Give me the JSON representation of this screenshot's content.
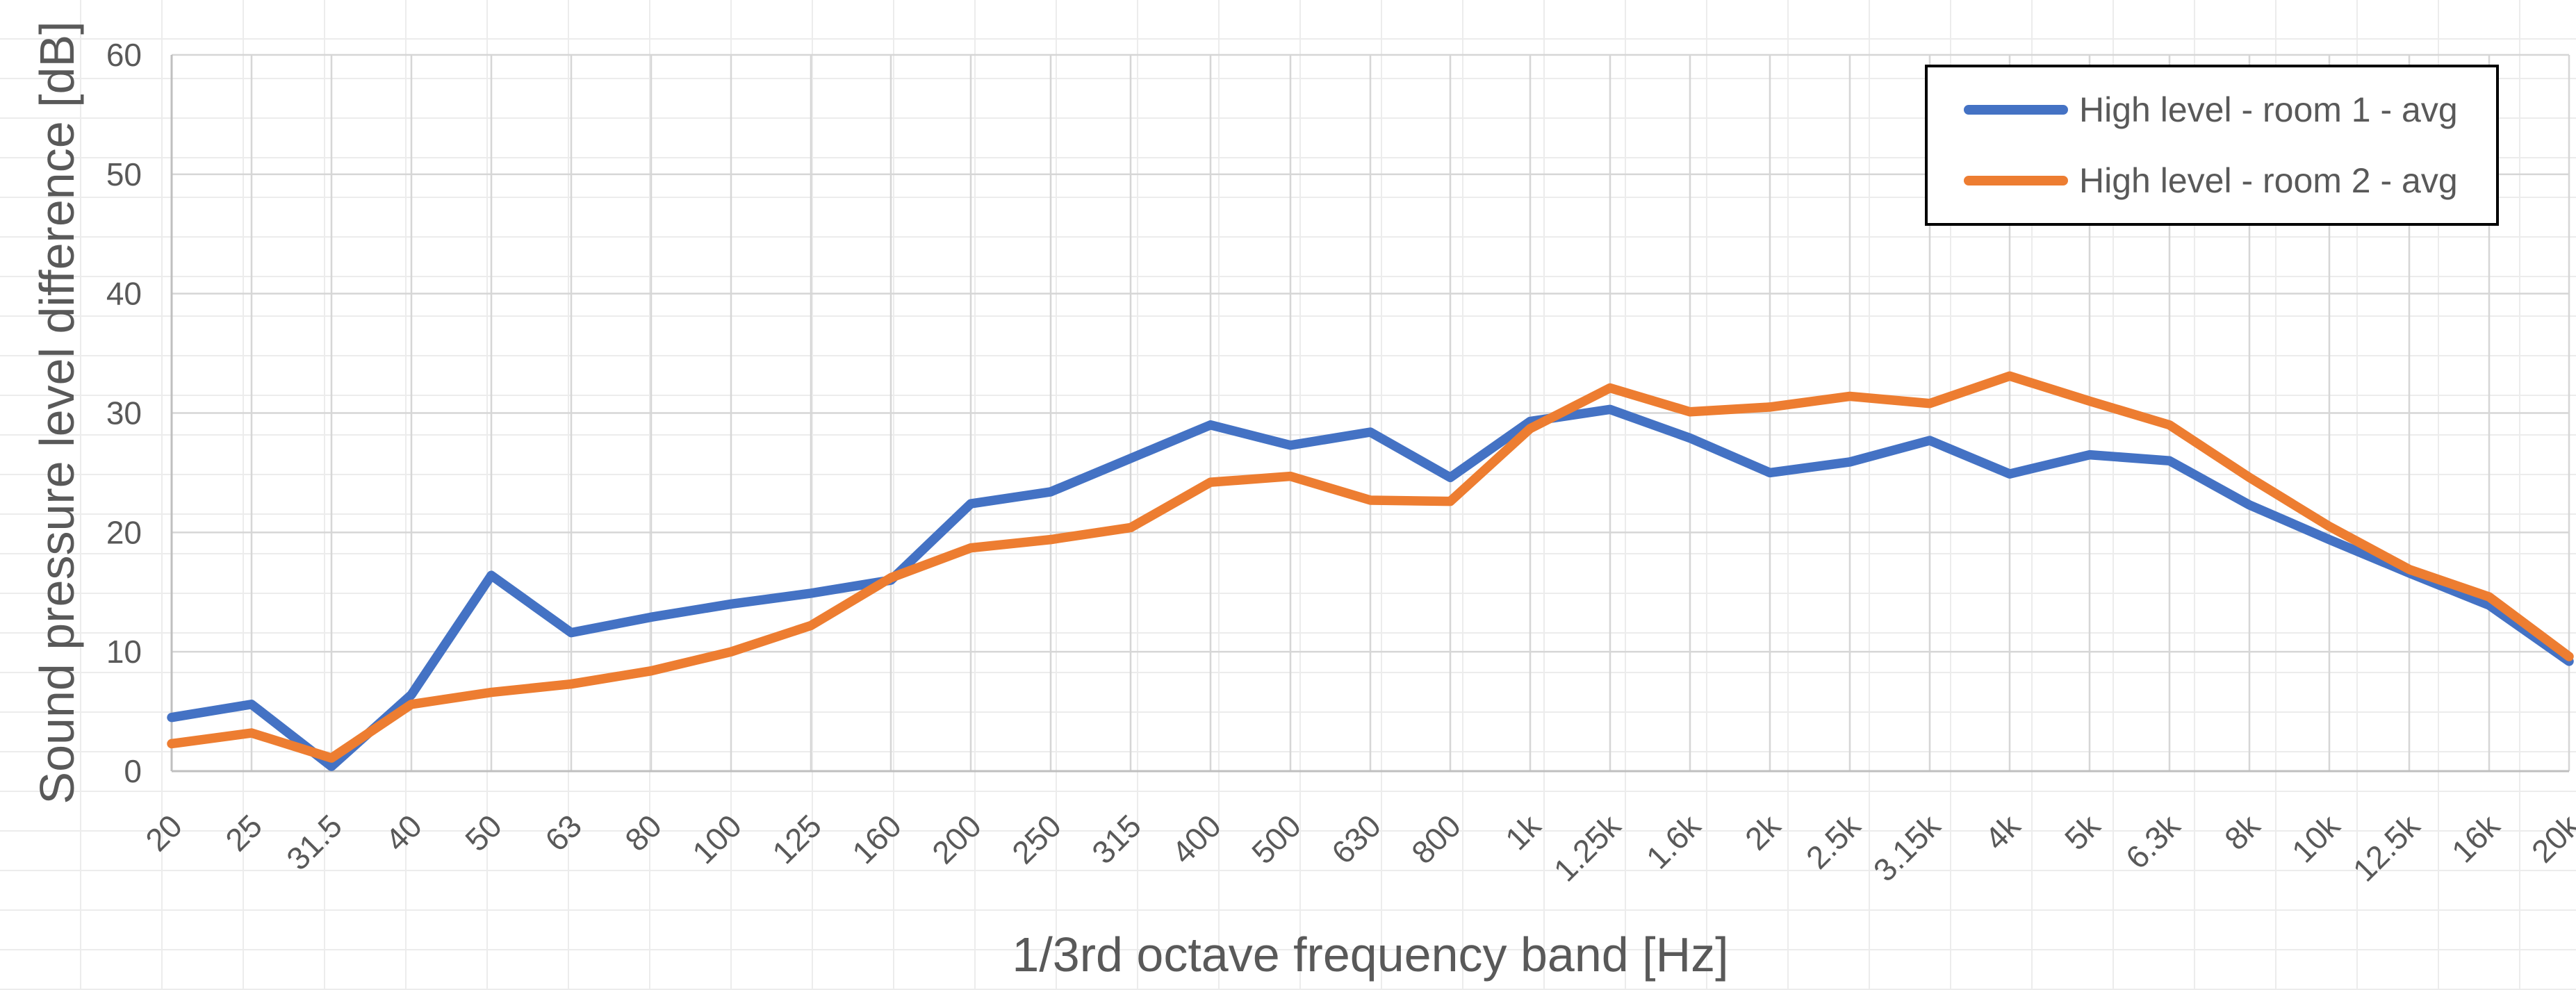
{
  "chart_data": {
    "type": "line",
    "title": "",
    "xlabel": "1/3rd octave frequency band [Hz]",
    "ylabel": "Sound pressure level difference [dB]",
    "ylim": [
      0,
      60
    ],
    "ytick_step": 10,
    "ytick_labels": [
      "0",
      "10",
      "20",
      "30",
      "40",
      "50",
      "60"
    ],
    "grid": true,
    "legend_position": "top-right",
    "categories": [
      "20",
      "25",
      "31.5",
      "40",
      "50",
      "63",
      "80",
      "100",
      "125",
      "160",
      "200",
      "250",
      "315",
      "400",
      "500",
      "630",
      "800",
      "1k",
      "1.25k",
      "1.6k",
      "2k",
      "2.5k",
      "3.15k",
      "4k",
      "5k",
      "6.3k",
      "8k",
      "10k",
      "12.5k",
      "16k",
      "20k"
    ],
    "series": [
      {
        "name": "High level - room 1 - avg",
        "color": "#4472C4",
        "values": [
          4.5,
          5.6,
          0.4,
          6.4,
          16.4,
          11.6,
          12.9,
          14.0,
          14.9,
          16.0,
          22.4,
          23.4,
          26.2,
          29.0,
          27.3,
          28.4,
          24.6,
          29.3,
          30.3,
          27.9,
          25.0,
          25.9,
          27.7,
          24.9,
          26.5,
          26.0,
          22.3,
          19.4,
          16.6,
          13.9,
          9.2
        ]
      },
      {
        "name": "High level - room 2 - avg",
        "color": "#ED7D31",
        "values": [
          2.3,
          3.2,
          1.1,
          5.6,
          6.6,
          7.3,
          8.4,
          10.0,
          12.2,
          16.2,
          18.7,
          19.4,
          20.4,
          24.2,
          24.7,
          22.7,
          22.6,
          28.7,
          32.1,
          30.1,
          30.5,
          31.4,
          30.8,
          33.1,
          31.0,
          29.0,
          24.6,
          20.5,
          16.9,
          14.6,
          9.6
        ]
      }
    ]
  },
  "style_colors": {
    "major_gridline": "#d6d6d6",
    "axis_line": "#bfbfbf",
    "tick_label": "#595959",
    "cell_grid": "#ececec"
  }
}
